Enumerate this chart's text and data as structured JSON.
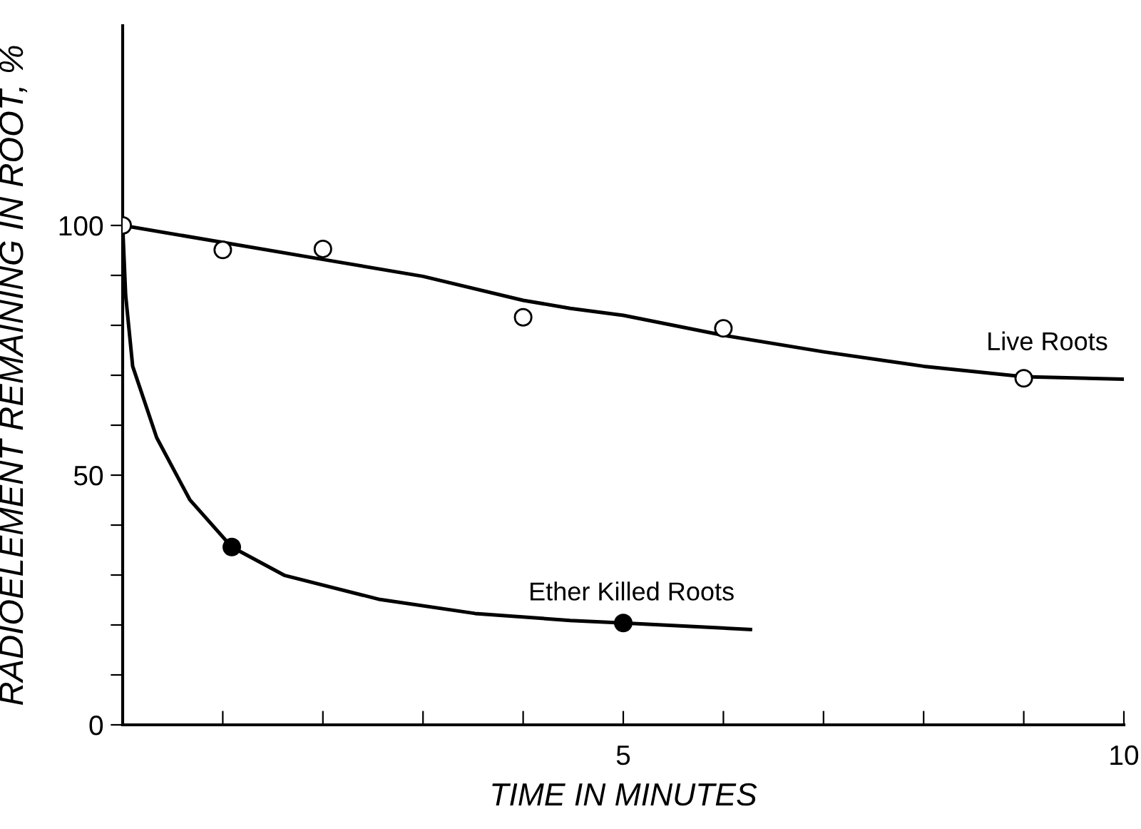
{
  "chart_data": {
    "type": "line",
    "xlabel": "TIME IN MINUTES",
    "ylabel": "RADIOELEMENT REMAINING IN ROOT, %",
    "series": [
      {
        "name": "Live Roots",
        "color": "#000000",
        "marker": "none",
        "x": [
          0,
          1,
          2,
          3,
          4,
          4.47,
          5,
          6,
          7,
          8,
          9,
          10
        ],
        "values": [
          100,
          96.6,
          93.2,
          89.8,
          85.0,
          83.4,
          82.0,
          78.0,
          74.7,
          71.8,
          69.7,
          69.2
        ]
      },
      {
        "type": "scatter",
        "color": "#ffffff",
        "marker": "circle",
        "x": [
          0,
          1,
          2,
          4,
          6,
          9
        ],
        "values": [
          100,
          95.1,
          95.3,
          81.6,
          79.4,
          69.4
        ]
      },
      {
        "name": "Ether Killed Roots",
        "color": "#000000",
        "marker": "none",
        "x": [
          0,
          0.03,
          0.1,
          0.34,
          0.67,
          1.09,
          1.62,
          2.57,
          3.52,
          4.47,
          5,
          6.27
        ],
        "values": [
          100,
          86,
          71.8,
          57.5,
          45.1,
          35.6,
          29.9,
          25.1,
          22.3,
          20.9,
          20.4,
          19.1
        ]
      },
      {
        "type": "scatter",
        "color": "#000000",
        "marker": "circle",
        "x": [
          1.09,
          5
        ],
        "values": [
          35.6,
          20.4
        ]
      }
    ],
    "xlim": [
      0,
      10
    ],
    "ylim": [
      0,
      140
    ],
    "xticks": [
      {
        "value": 1,
        "label": null
      },
      {
        "value": 2,
        "label": null
      },
      {
        "value": 3,
        "label": null
      },
      {
        "value": 4,
        "label": null
      },
      5,
      {
        "value": 6,
        "label": null
      },
      {
        "value": 7,
        "label": null
      },
      {
        "value": 8,
        "label": null
      },
      {
        "value": 9,
        "label": null
      },
      10
    ],
    "yticks": [
      0,
      {
        "value": 10,
        "label": null
      },
      {
        "value": 20,
        "label": null
      },
      {
        "value": 30,
        "label": null
      },
      {
        "value": 40,
        "label": null
      },
      50,
      {
        "value": 60,
        "label": null
      },
      {
        "value": 70,
        "label": null
      },
      {
        "value": 80,
        "label": null
      },
      {
        "value": 90,
        "label": null
      },
      100
    ],
    "grid": false,
    "legend": false
  }
}
